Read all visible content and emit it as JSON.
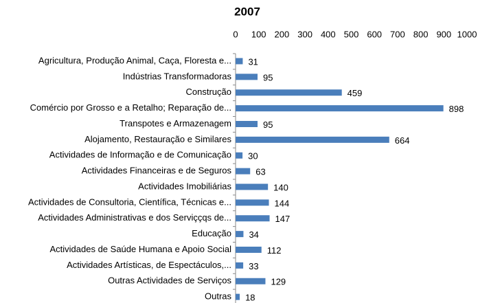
{
  "chart_data": {
    "type": "bar",
    "orientation": "horizontal",
    "title": "2007",
    "categories": [
      "Agricultura, Produção Animal, Caça, Floresta e...",
      "Indústrias Transformadoras",
      "Construção",
      "Comércio por Grosso e a Retalho; Reparação de...",
      "Transpotes e Armazenagem",
      "Alojamento, Restauração e Similares",
      "Actividades de Informação e de Comunicação",
      "Actividades Financeiras e de Seguros",
      "Actividades Imobiliárias",
      "Actividades de Consultoria, Científica, Técnicas e...",
      "Actividades Administrativas  e dos Serviççqs de...",
      "Educação",
      "Actividades de Saúde Humana  e Apoio Social",
      "Actividades Artísticas, de Espectáculos,...",
      "Outras Actividades de Serviços",
      "Outras"
    ],
    "values": [
      31,
      95,
      459,
      898,
      95,
      664,
      30,
      63,
      140,
      144,
      147,
      34,
      112,
      33,
      129,
      18
    ],
    "color": "#4a7ebb",
    "xlim": [
      0,
      1000
    ],
    "xticks": [
      0,
      100,
      200,
      300,
      400,
      500,
      600,
      700,
      800,
      900,
      1000
    ],
    "xaxis_position": "top",
    "grid": false
  }
}
